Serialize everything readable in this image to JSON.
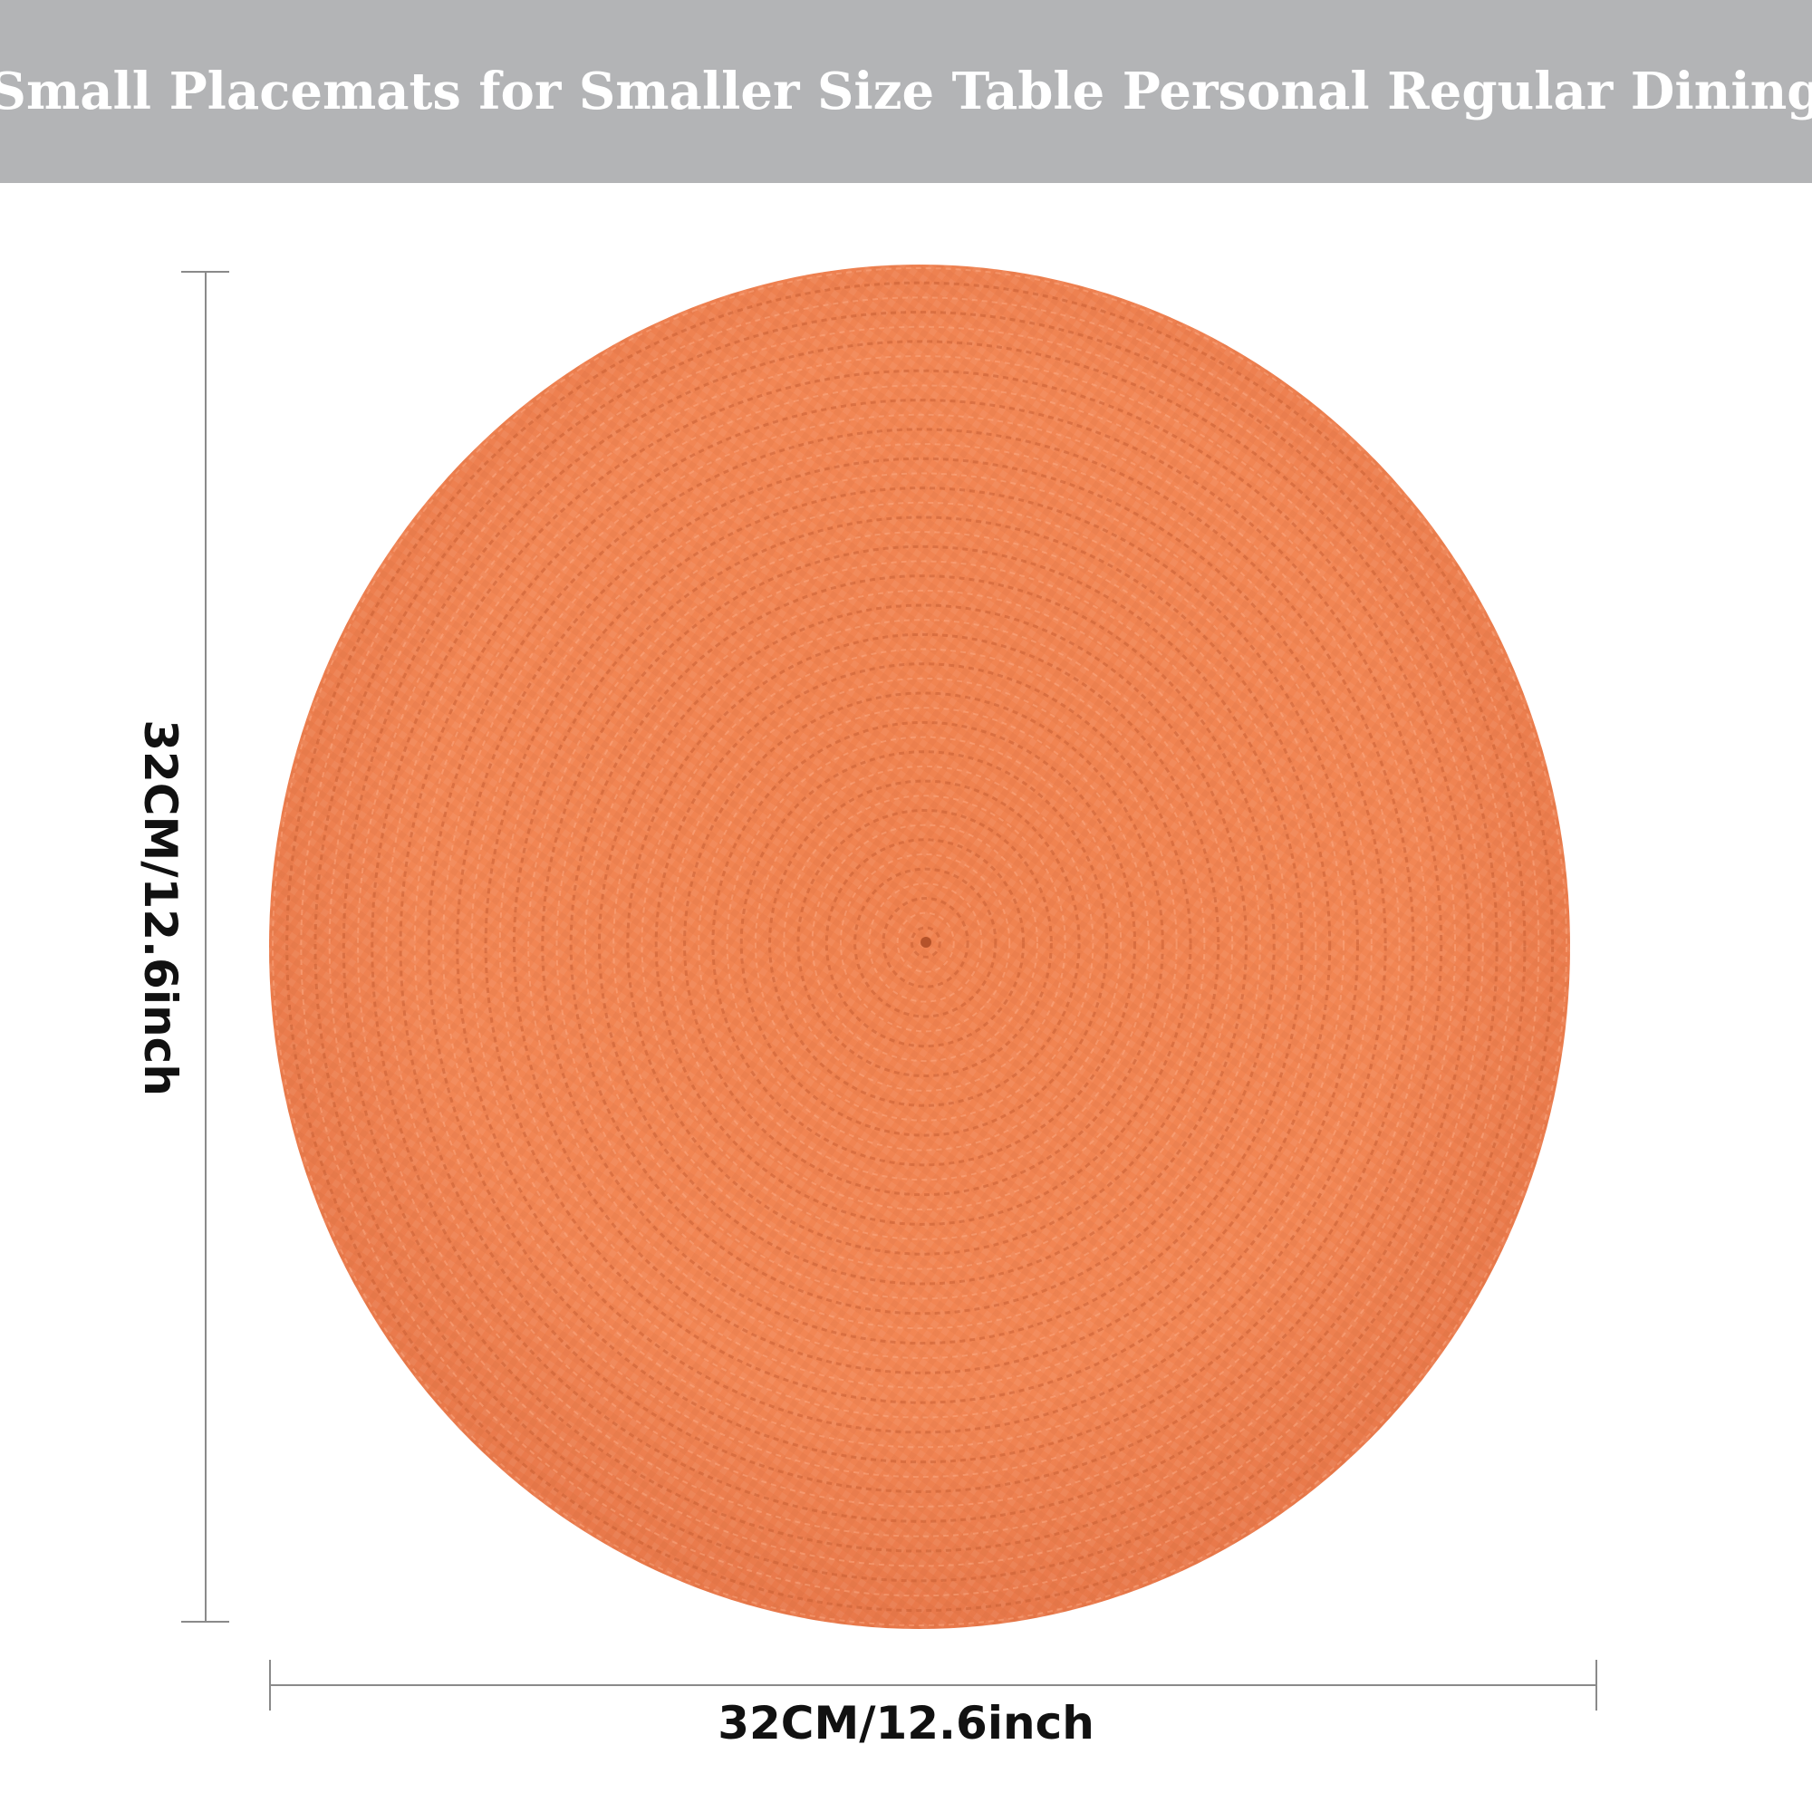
{
  "banner": {
    "title": "Small Placemats for Smaller Size Table Personal Regular Dining",
    "background_color": "#b3b4b6",
    "text_color": "#ffffff"
  },
  "placemat": {
    "shape": "round woven placemat",
    "color": "#f28452"
  },
  "dimensions": {
    "height_label": "32CM/12.6inch",
    "width_label": "32CM/12.6inch"
  }
}
